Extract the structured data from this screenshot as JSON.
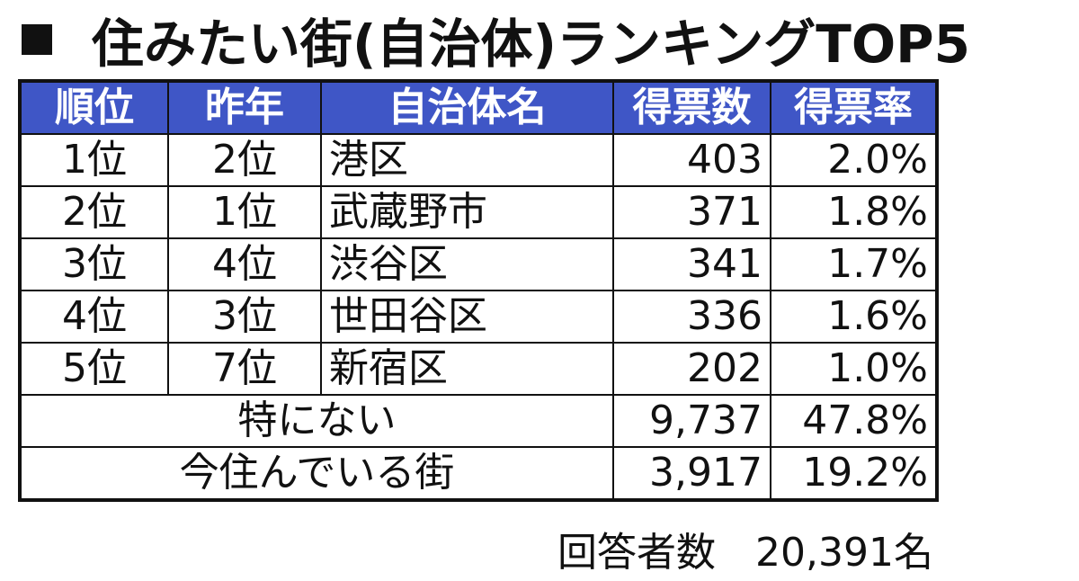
{
  "title": "住みたい街(自治体)ランキングTOP5",
  "table": {
    "header": [
      "順位",
      "昨年",
      "自治体名",
      "得票数",
      "得票率"
    ],
    "rows": [
      [
        "1位",
        "2位",
        "港区",
        "403",
        "2.0%"
      ],
      [
        "2位",
        "1位",
        "武蔵野市",
        "371",
        "1.8%"
      ],
      [
        "3位",
        "4位",
        "渋谷区",
        "341",
        "1.7%"
      ],
      [
        "4位",
        "3位",
        "世田谷区",
        "336",
        "1.6%"
      ],
      [
        "5位",
        "7位",
        "新宿区",
        "202",
        "1.0%"
      ]
    ],
    "summary_rows": [
      [
        "特にない",
        "9,737",
        "47.8%"
      ],
      [
        "今住んでいる街",
        "3,917",
        "19.2%"
      ]
    ]
  },
  "footer": {
    "label": "回答者数",
    "value": "20,391名"
  }
}
